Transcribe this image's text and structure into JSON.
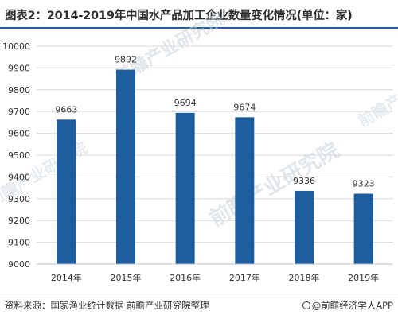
{
  "title": "图表2：2014-2019年中国水产品加工企业数量变化情况(单位：家)",
  "source": "资料来源：国家渔业统计数据 前瞻产业研究院整理",
  "brand": "@前瞻经济学人APP",
  "watermark": "前瞻产业研究院",
  "colors": {
    "bar": "#1f5e9e",
    "title_rule": "#1f5e9e",
    "grid": "#d9d9d9",
    "label": "#333333"
  },
  "chart_data": {
    "type": "bar",
    "title": "图表2：2014-2019年中国水产品加工企业数量变化情况(单位：家)",
    "categories": [
      "2014年",
      "2015年",
      "2016年",
      "2017年",
      "2018年",
      "2019年"
    ],
    "values": [
      9663,
      9892,
      9694,
      9674,
      9336,
      9323
    ],
    "data_labels": [
      "9663",
      "9892",
      "9694",
      "9674",
      "9336",
      "9323"
    ],
    "yticks": [
      "9000",
      "9100",
      "9200",
      "9300",
      "9400",
      "9500",
      "9600",
      "9700",
      "9800",
      "9900",
      "10000"
    ],
    "ylim": [
      9000,
      10000
    ],
    "xlabel": "",
    "ylabel": "",
    "grid": true,
    "legend": "none"
  }
}
